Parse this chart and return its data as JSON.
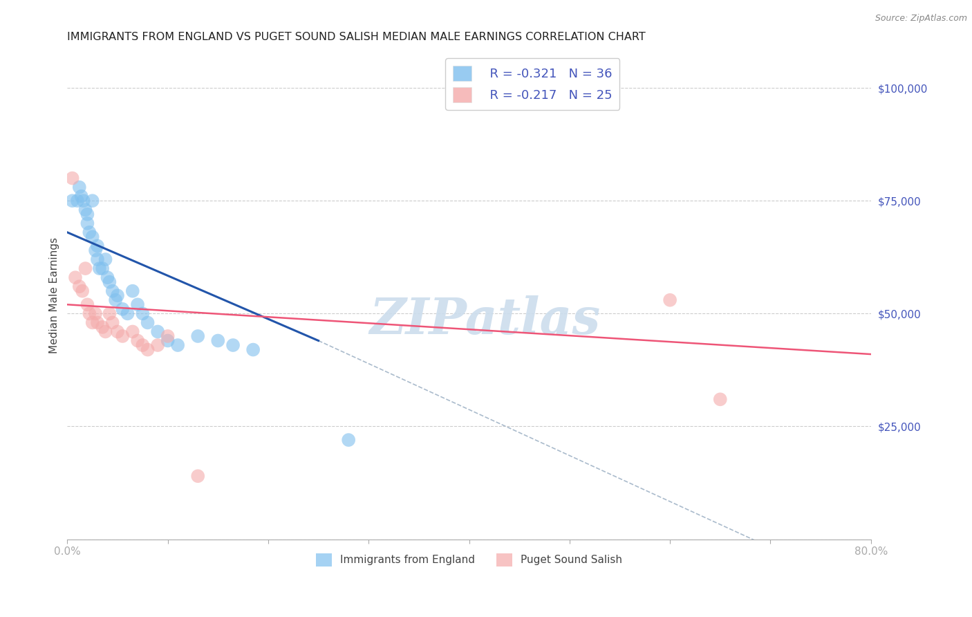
{
  "title": "IMMIGRANTS FROM ENGLAND VS PUGET SOUND SALISH MEDIAN MALE EARNINGS CORRELATION CHART",
  "source": "Source: ZipAtlas.com",
  "ylabel": "Median Male Earnings",
  "xlim": [
    0,
    0.8
  ],
  "ylim": [
    0,
    108000
  ],
  "xticks": [
    0.0,
    0.1,
    0.2,
    0.3,
    0.4,
    0.5,
    0.6,
    0.7,
    0.8
  ],
  "xticklabels": [
    "0.0%",
    "",
    "",
    "",
    "",
    "",
    "",
    "",
    "80.0%"
  ],
  "ytick_values": [
    0,
    25000,
    50000,
    75000,
    100000
  ],
  "ytick_labels": [
    "",
    "$25,000",
    "$50,000",
    "$75,000",
    "$100,000"
  ],
  "background_color": "#ffffff",
  "grid_color": "#cccccc",
  "blue_color": "#7fbfee",
  "pink_color": "#f4aaaa",
  "blue_line_color": "#2255aa",
  "pink_line_color": "#ee5577",
  "dashed_line_color": "#aabbcc",
  "legend_R1": "R = -0.321",
  "legend_N1": "N = 36",
  "legend_R2": "R = -0.217",
  "legend_N2": "N = 25",
  "legend_label1": "Immigrants from England",
  "legend_label2": "Puget Sound Salish",
  "title_color": "#222222",
  "axis_label_color": "#4455bb",
  "blue_scatter_x": [
    0.005,
    0.01,
    0.012,
    0.014,
    0.016,
    0.018,
    0.02,
    0.02,
    0.022,
    0.025,
    0.025,
    0.028,
    0.03,
    0.03,
    0.032,
    0.035,
    0.038,
    0.04,
    0.042,
    0.045,
    0.048,
    0.05,
    0.055,
    0.06,
    0.065,
    0.07,
    0.075,
    0.08,
    0.09,
    0.1,
    0.11,
    0.13,
    0.15,
    0.165,
    0.185,
    0.28
  ],
  "blue_scatter_y": [
    75000,
    75000,
    78000,
    76000,
    75000,
    73000,
    72000,
    70000,
    68000,
    67000,
    75000,
    64000,
    62000,
    65000,
    60000,
    60000,
    62000,
    58000,
    57000,
    55000,
    53000,
    54000,
    51000,
    50000,
    55000,
    52000,
    50000,
    48000,
    46000,
    44000,
    43000,
    45000,
    44000,
    43000,
    42000,
    22000
  ],
  "pink_scatter_x": [
    0.005,
    0.008,
    0.012,
    0.015,
    0.018,
    0.02,
    0.022,
    0.025,
    0.028,
    0.03,
    0.035,
    0.038,
    0.042,
    0.045,
    0.05,
    0.055,
    0.065,
    0.07,
    0.075,
    0.08,
    0.09,
    0.1,
    0.13,
    0.6,
    0.65
  ],
  "pink_scatter_y": [
    80000,
    58000,
    56000,
    55000,
    60000,
    52000,
    50000,
    48000,
    50000,
    48000,
    47000,
    46000,
    50000,
    48000,
    46000,
    45000,
    46000,
    44000,
    43000,
    42000,
    43000,
    45000,
    14000,
    53000,
    31000
  ],
  "blue_trendline_x": [
    0.0,
    0.25
  ],
  "blue_trendline_y": [
    68000,
    44000
  ],
  "dashed_line_x": [
    0.25,
    0.8
  ],
  "dashed_line_y": [
    44000,
    -12000
  ],
  "pink_trendline_x": [
    0.0,
    0.8
  ],
  "pink_trendline_y": [
    52000,
    41000
  ],
  "watermark": "ZIPatlas",
  "watermark_color": "#ccdded"
}
